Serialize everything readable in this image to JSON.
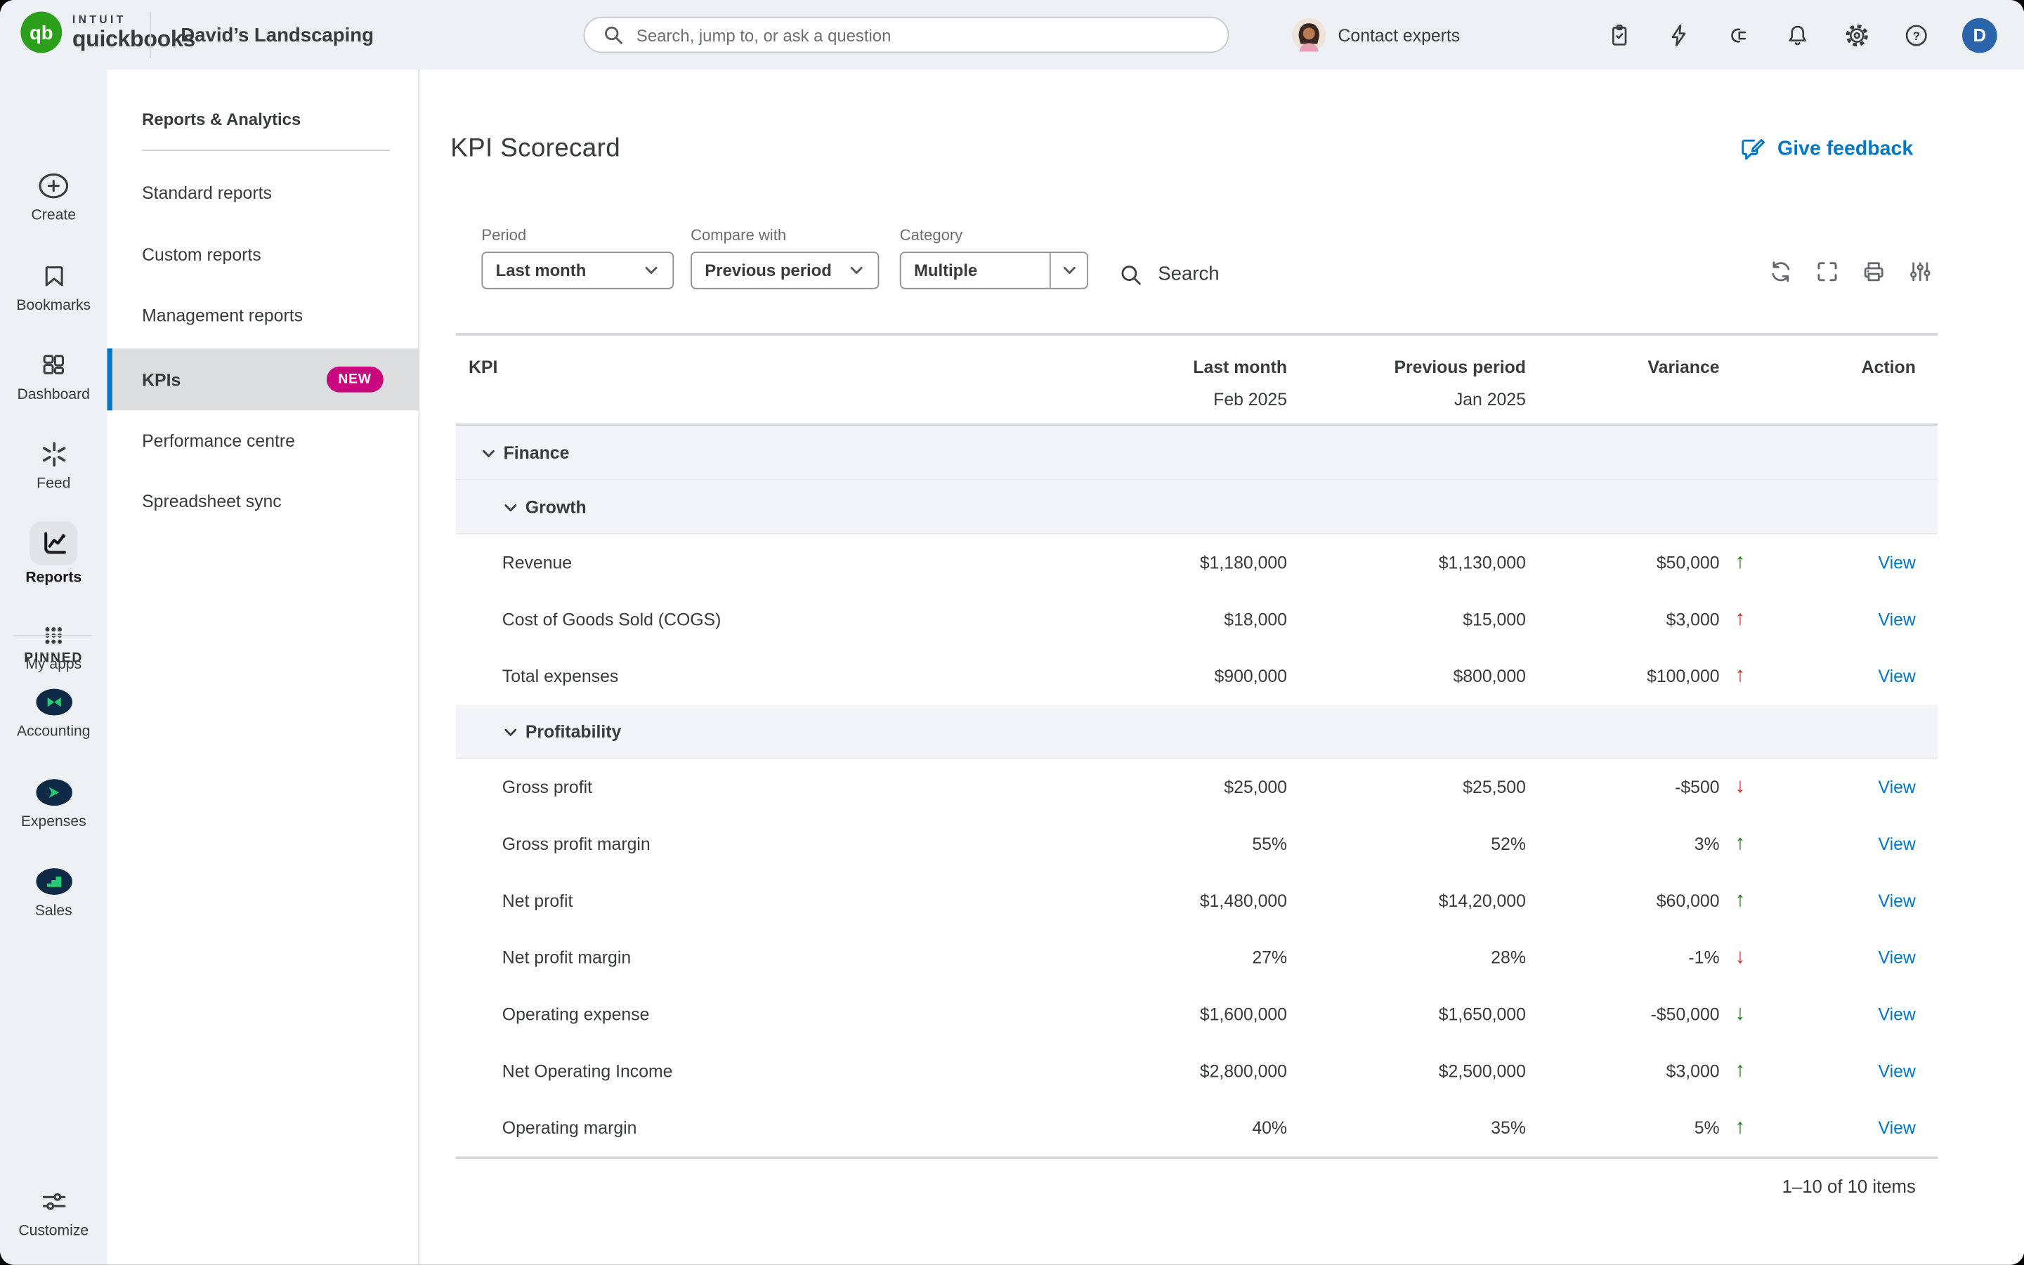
{
  "colors": {
    "accent_blue": "#0077c5",
    "brand_green": "#2ca01c",
    "positive_green": "#108000",
    "negative_red": "#d52b1e",
    "badge_magenta": "#c9087f",
    "chrome_bg": "#edf0f4",
    "selected_gray": "#dcddde"
  },
  "glyphs": {
    "up": "↑",
    "down": "↓"
  },
  "topbar": {
    "brand_intuit": "INTUIT",
    "brand_quickbooks": "quickbooks",
    "company_name": "David’s Landscaping",
    "search_placeholder": "Search, jump to, or ask a question",
    "contact_experts": "Contact experts",
    "user_initial": "D"
  },
  "sidebar": {
    "items": [
      {
        "label": "Create",
        "icon": "plus-circle-icon",
        "active": false
      },
      {
        "label": "Bookmarks",
        "icon": "bookmark-icon",
        "active": false
      },
      {
        "label": "Dashboard",
        "icon": "dashboard-grid-icon",
        "active": false
      },
      {
        "label": "Feed",
        "icon": "feed-burst-icon",
        "active": false
      },
      {
        "label": "Reports",
        "icon": "line-chart-icon",
        "active": true
      },
      {
        "label": "My apps",
        "icon": "dots-grid-icon",
        "active": false
      }
    ],
    "pinned_label": "PINNED",
    "pinned_items": [
      {
        "label": "Accounting",
        "icon": "accounting-bowtie-icon"
      },
      {
        "label": "Expenses",
        "icon": "expenses-arrow-icon"
      },
      {
        "label": "Sales",
        "icon": "sales-steps-icon"
      }
    ],
    "customize_label": "Customize"
  },
  "subnav": {
    "header": "Reports & Analytics",
    "items": [
      {
        "label": "Standard reports",
        "active": false
      },
      {
        "label": "Custom reports",
        "active": false
      },
      {
        "label": "Management reports",
        "active": false
      },
      {
        "label": "KPIs",
        "active": true,
        "badge": "NEW"
      },
      {
        "label": "Performance centre",
        "active": false
      },
      {
        "label": "Spreadsheet sync",
        "active": false
      }
    ]
  },
  "main": {
    "title": "KPI Scorecard",
    "feedback_label": "Give feedback",
    "filters": {
      "period": {
        "label": "Period",
        "value": "Last month"
      },
      "compare": {
        "label": "Compare with",
        "value": "Previous period"
      },
      "category": {
        "label": "Category",
        "value": "Multiple"
      },
      "search_label": "Search"
    },
    "tools": [
      "refresh-icon",
      "fullscreen-icon",
      "print-icon",
      "sliders-icon"
    ],
    "table": {
      "columns": {
        "kpi": "KPI",
        "last_month": "Last month",
        "last_month_sub": "Feb 2025",
        "previous_period": "Previous period",
        "previous_period_sub": "Jan 2025",
        "variance": "Variance",
        "action": "Action"
      },
      "view_label": "View",
      "groups": [
        {
          "name": "Finance",
          "subgroups": [
            {
              "name": "Growth",
              "rows": [
                {
                  "kpi": "Revenue",
                  "last_month": "$1,180,000",
                  "previous_period": "$1,130,000",
                  "variance": "$50,000",
                  "arrow": "up",
                  "trend": "green"
                },
                {
                  "kpi": "Cost of Goods Sold (COGS)",
                  "last_month": "$18,000",
                  "previous_period": "$15,000",
                  "variance": "$3,000",
                  "arrow": "up",
                  "trend": "red"
                },
                {
                  "kpi": "Total expenses",
                  "last_month": "$900,000",
                  "previous_period": "$800,000",
                  "variance": "$100,000",
                  "arrow": "up",
                  "trend": "red"
                }
              ]
            },
            {
              "name": "Profitability",
              "rows": [
                {
                  "kpi": "Gross profit",
                  "last_month": "$25,000",
                  "previous_period": "$25,500",
                  "variance": "-$500",
                  "arrow": "down",
                  "trend": "red"
                },
                {
                  "kpi": "Gross profit margin",
                  "last_month": "55%",
                  "previous_period": "52%",
                  "variance": "3%",
                  "arrow": "up",
                  "trend": "green"
                },
                {
                  "kpi": "Net profit",
                  "last_month": "$1,480,000",
                  "previous_period": "$14,20,000",
                  "variance": "$60,000",
                  "arrow": "up",
                  "trend": "green"
                },
                {
                  "kpi": "Net profit margin",
                  "last_month": "27%",
                  "previous_period": "28%",
                  "variance": "-1%",
                  "arrow": "down",
                  "trend": "red"
                },
                {
                  "kpi": "Operating expense",
                  "last_month": "$1,600,000",
                  "previous_period": "$1,650,000",
                  "variance": "-$50,000",
                  "arrow": "down",
                  "trend": "green"
                },
                {
                  "kpi": "Net Operating Income",
                  "last_month": "$2,800,000",
                  "previous_period": "$2,500,000",
                  "variance": "$3,000",
                  "arrow": "up",
                  "trend": "green"
                },
                {
                  "kpi": "Operating margin",
                  "last_month": "40%",
                  "previous_period": "35%",
                  "variance": "5%",
                  "arrow": "up",
                  "trend": "green"
                }
              ]
            }
          ]
        }
      ],
      "footer": "1–10 of 10 items"
    }
  }
}
